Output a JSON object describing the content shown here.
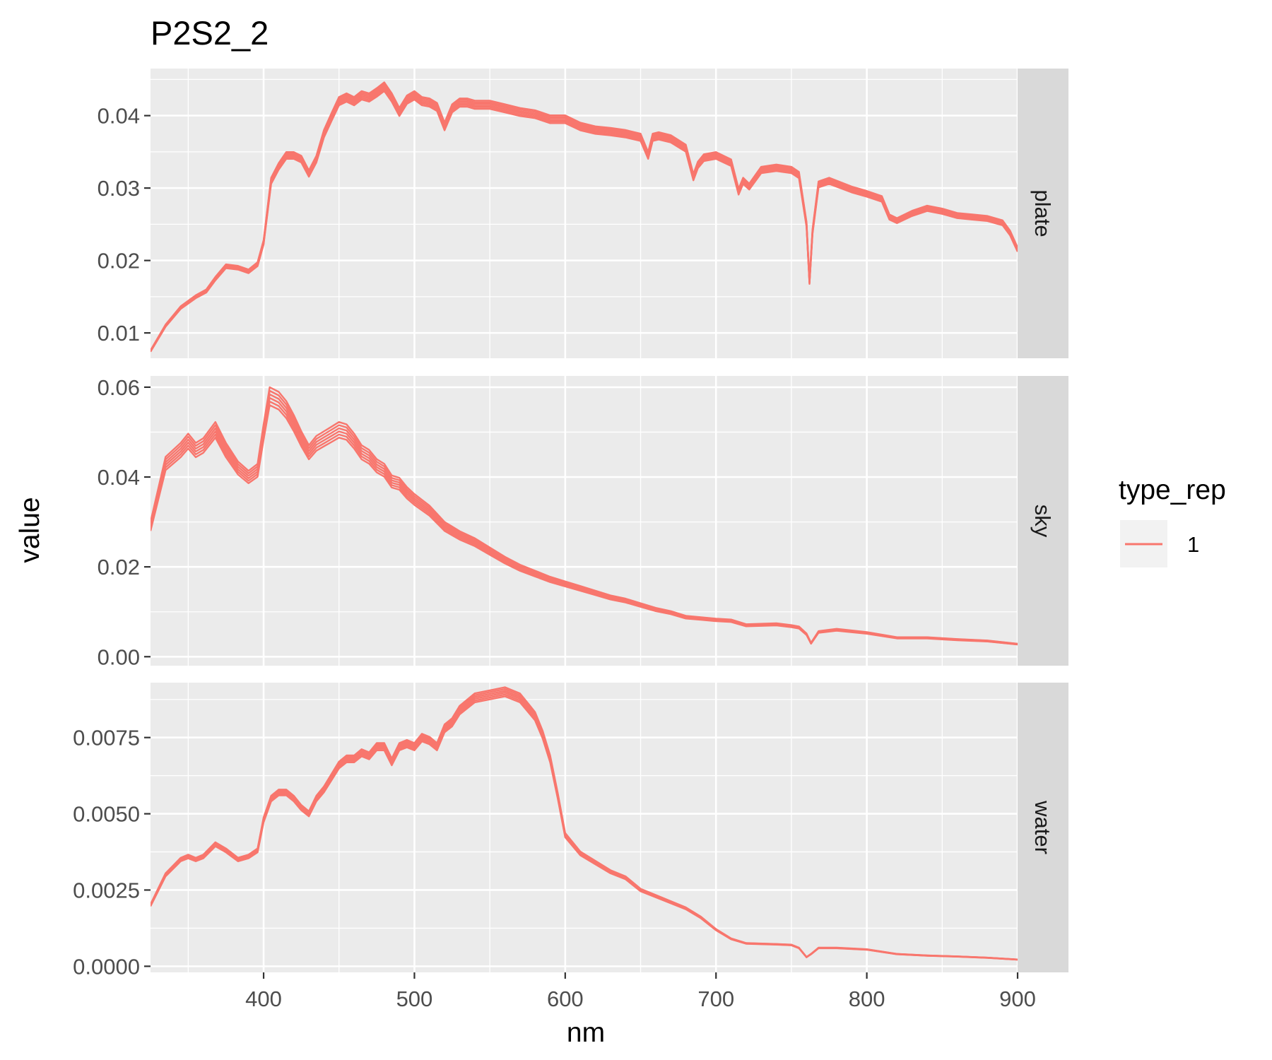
{
  "chart_data": {
    "type": "line",
    "title": "P2S2_2",
    "xlabel": "nm",
    "ylabel": "value",
    "xlim": [
      325,
      900
    ],
    "x_ticks": [
      400,
      500,
      600,
      700,
      800,
      900
    ],
    "grid": true,
    "legend": {
      "title": "type_rep",
      "position": "right",
      "items": [
        {
          "label": "1",
          "color": "#F8766D"
        }
      ]
    },
    "line_color": "#F8766D",
    "panel_bg": "#EBEBEB",
    "strip_bg": "#D9D9D9",
    "facets": [
      {
        "label": "plate",
        "ylim": [
          0.0065,
          0.0465
        ],
        "y_ticks": [
          0.01,
          0.02,
          0.03,
          0.04
        ],
        "y_tick_labels": [
          "0.01",
          "0.02",
          "0.03",
          "0.04"
        ],
        "n_lines": 6,
        "spread": 0.0012,
        "x": [
          325,
          335,
          345,
          355,
          362,
          368,
          375,
          383,
          390,
          396,
          400,
          405,
          410,
          415,
          420,
          425,
          430,
          435,
          440,
          445,
          450,
          455,
          460,
          465,
          470,
          475,
          480,
          485,
          490,
          495,
          500,
          505,
          510,
          515,
          520,
          525,
          530,
          535,
          540,
          550,
          560,
          570,
          580,
          590,
          600,
          610,
          620,
          630,
          640,
          650,
          655,
          658,
          662,
          670,
          680,
          685,
          688,
          692,
          700,
          710,
          715,
          718,
          722,
          730,
          740,
          750,
          755,
          760,
          762,
          764,
          768,
          775,
          790,
          800,
          810,
          815,
          820,
          830,
          840,
          850,
          860,
          870,
          880,
          890,
          895,
          900
        ],
        "y": [
          0.0075,
          0.011,
          0.0135,
          0.015,
          0.0158,
          0.0175,
          0.0192,
          0.019,
          0.0185,
          0.0195,
          0.0225,
          0.031,
          0.033,
          0.0345,
          0.0345,
          0.034,
          0.032,
          0.034,
          0.0375,
          0.0398,
          0.042,
          0.0425,
          0.042,
          0.0428,
          0.0425,
          0.0432,
          0.044,
          0.0425,
          0.0405,
          0.0422,
          0.0428,
          0.042,
          0.0418,
          0.0412,
          0.0385,
          0.041,
          0.0418,
          0.0418,
          0.0415,
          0.0415,
          0.041,
          0.0405,
          0.0402,
          0.0395,
          0.0395,
          0.0385,
          0.038,
          0.0378,
          0.0375,
          0.037,
          0.0345,
          0.037,
          0.0372,
          0.0368,
          0.0355,
          0.0315,
          0.0332,
          0.0342,
          0.0345,
          0.0335,
          0.0295,
          0.031,
          0.0302,
          0.0325,
          0.0328,
          0.0325,
          0.0318,
          0.025,
          0.017,
          0.024,
          0.0305,
          0.031,
          0.0298,
          0.0292,
          0.0285,
          0.026,
          0.0255,
          0.0265,
          0.0272,
          0.0268,
          0.0262,
          0.026,
          0.0258,
          0.0252,
          0.0238,
          0.0215
        ]
      },
      {
        "label": "sky",
        "ylim": [
          -0.002,
          0.0625
        ],
        "y_ticks": [
          0.0,
          0.02,
          0.04,
          0.06
        ],
        "y_tick_labels": [
          "0.00",
          "0.02",
          "0.04",
          "0.06"
        ],
        "n_lines": 6,
        "spread": 0.004,
        "x": [
          325,
          335,
          345,
          350,
          355,
          360,
          368,
          375,
          383,
          390,
          396,
          400,
          404,
          410,
          415,
          420,
          425,
          430,
          435,
          440,
          445,
          450,
          455,
          460,
          465,
          470,
          475,
          480,
          485,
          490,
          495,
          500,
          510,
          520,
          530,
          540,
          550,
          560,
          570,
          580,
          590,
          600,
          610,
          620,
          630,
          640,
          650,
          660,
          670,
          680,
          690,
          700,
          710,
          720,
          740,
          750,
          755,
          760,
          763,
          768,
          780,
          800,
          820,
          840,
          860,
          880,
          900
        ],
        "y": [
          0.029,
          0.043,
          0.046,
          0.048,
          0.046,
          0.047,
          0.0505,
          0.046,
          0.042,
          0.04,
          0.0415,
          0.05,
          0.058,
          0.057,
          0.055,
          0.052,
          0.0485,
          0.0455,
          0.0475,
          0.0485,
          0.0495,
          0.0505,
          0.05,
          0.048,
          0.0455,
          0.0445,
          0.0425,
          0.0415,
          0.039,
          0.0385,
          0.0365,
          0.035,
          0.0325,
          0.029,
          0.027,
          0.0255,
          0.0235,
          0.0215,
          0.0198,
          0.0185,
          0.0172,
          0.0162,
          0.0152,
          0.0142,
          0.0132,
          0.0125,
          0.0115,
          0.0105,
          0.0098,
          0.0088,
          0.0085,
          0.0082,
          0.008,
          0.007,
          0.0072,
          0.0068,
          0.0065,
          0.005,
          0.003,
          0.0055,
          0.006,
          0.0053,
          0.0042,
          0.0042,
          0.0038,
          0.0035,
          0.0028
        ]
      },
      {
        "label": "water",
        "ylim": [
          -0.0002,
          0.0093
        ],
        "y_ticks": [
          0.0,
          0.0025,
          0.005,
          0.0075
        ],
        "y_tick_labels": [
          "0.0000",
          "0.0025",
          "0.0050",
          "0.0075"
        ],
        "n_lines": 6,
        "spread": 0.0003,
        "x": [
          325,
          335,
          345,
          350,
          355,
          360,
          368,
          375,
          383,
          390,
          396,
          400,
          405,
          410,
          415,
          420,
          425,
          430,
          435,
          440,
          445,
          450,
          455,
          460,
          465,
          470,
          475,
          480,
          485,
          490,
          495,
          500,
          505,
          510,
          515,
          520,
          525,
          530,
          540,
          550,
          560,
          565,
          570,
          575,
          580,
          585,
          590,
          595,
          600,
          610,
          620,
          630,
          640,
          650,
          660,
          670,
          680,
          690,
          700,
          710,
          720,
          740,
          750,
          755,
          760,
          763,
          768,
          780,
          800,
          820,
          840,
          860,
          880,
          900
        ],
        "y": [
          0.002,
          0.003,
          0.0035,
          0.0036,
          0.0035,
          0.0036,
          0.004,
          0.0038,
          0.0035,
          0.0036,
          0.0038,
          0.0048,
          0.0055,
          0.0057,
          0.0057,
          0.0055,
          0.0052,
          0.005,
          0.0055,
          0.0058,
          0.0062,
          0.0066,
          0.0068,
          0.0068,
          0.007,
          0.0069,
          0.0072,
          0.0072,
          0.0067,
          0.0072,
          0.0073,
          0.0072,
          0.0075,
          0.0074,
          0.0072,
          0.0078,
          0.008,
          0.0084,
          0.0088,
          0.0089,
          0.009,
          0.0089,
          0.0088,
          0.0085,
          0.0082,
          0.0076,
          0.0068,
          0.0056,
          0.0043,
          0.0037,
          0.0034,
          0.0031,
          0.0029,
          0.0025,
          0.0023,
          0.0021,
          0.0019,
          0.0016,
          0.0012,
          0.0009,
          0.00075,
          0.00072,
          0.0007,
          0.0006,
          0.0003,
          0.0004,
          0.0006,
          0.0006,
          0.00055,
          0.0004,
          0.00035,
          0.00032,
          0.00028,
          0.00022
        ]
      }
    ]
  }
}
